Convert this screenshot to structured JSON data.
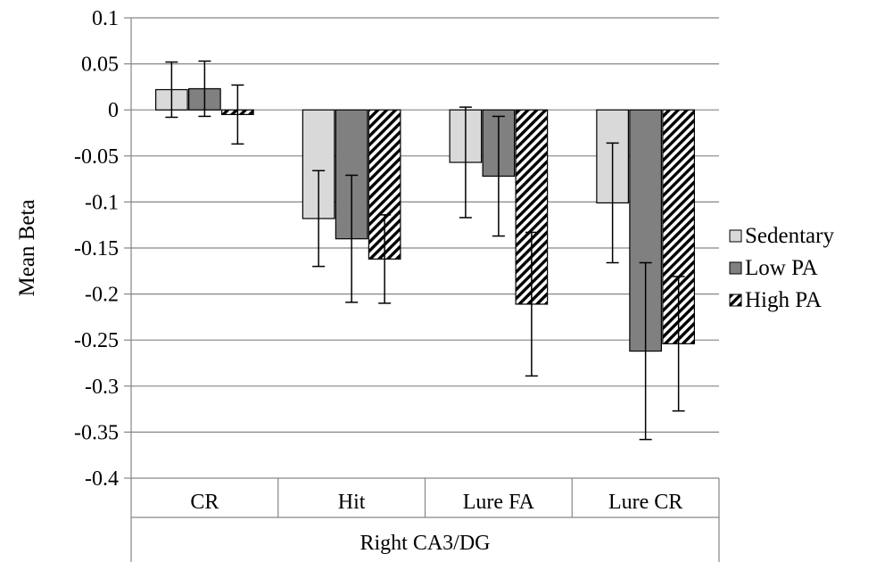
{
  "chart_data": {
    "type": "bar",
    "title": "",
    "xlabel": "",
    "group_label": "Right CA3/DG",
    "ylabel": "Mean Beta",
    "ylim": [
      -0.4,
      0.1
    ],
    "ytick_step": 0.05,
    "yticks": [
      "0.1",
      "0.05",
      "0",
      "-0.05",
      "-0.1",
      "-0.15",
      "-0.2",
      "-0.25",
      "-0.3",
      "-0.35",
      "-0.4"
    ],
    "grid": true,
    "legend_position": "right",
    "categories": [
      "CR",
      "Hit",
      "Lure FA",
      "Lure CR"
    ],
    "series": [
      {
        "name": "Sedentary",
        "pattern": "solid",
        "color": "#d9d9d9",
        "values": [
          0.022,
          -0.118,
          -0.057,
          -0.101
        ],
        "errors": [
          0.03,
          0.052,
          0.06,
          0.065
        ]
      },
      {
        "name": "Low PA",
        "pattern": "solid",
        "color": "#808080",
        "values": [
          0.023,
          -0.14,
          -0.072,
          -0.262
        ],
        "errors": [
          0.03,
          0.069,
          0.065,
          0.096
        ]
      },
      {
        "name": "High PA",
        "pattern": "diagonal-hatch",
        "color": "#000000",
        "values": [
          -0.005,
          -0.162,
          -0.211,
          -0.254
        ],
        "errors": [
          0.032,
          0.048,
          0.078,
          0.073
        ]
      }
    ]
  }
}
